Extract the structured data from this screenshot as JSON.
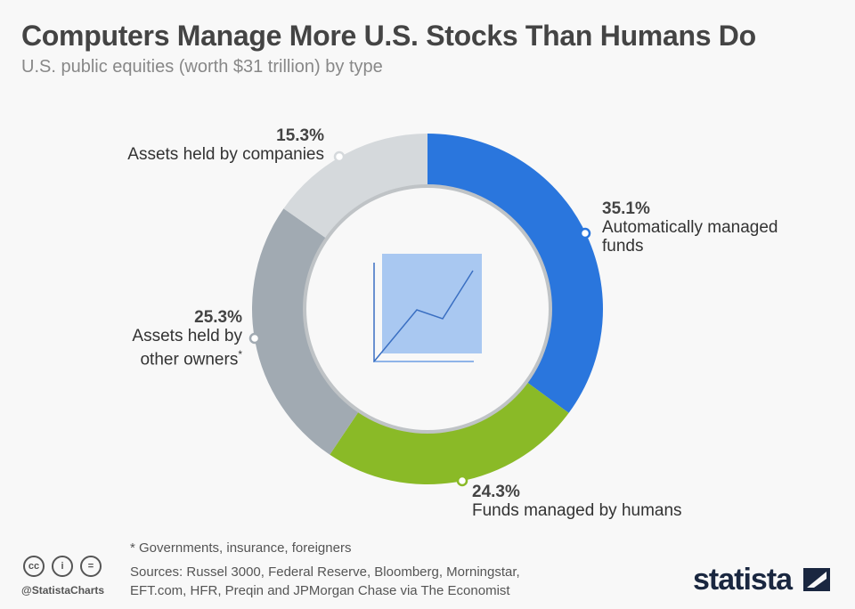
{
  "title": "Computers Manage More U.S. Stocks Than Humans Do",
  "subtitle": "U.S. public equities (worth $31 trillion) by type",
  "chart_data": {
    "type": "pie",
    "donut": true,
    "slices": [
      {
        "label": "Automatically managed funds",
        "value": 35.1,
        "value_label": "35.1%",
        "color": "#2a76dd"
      },
      {
        "label": "Funds managed by humans",
        "value": 24.3,
        "value_label": "24.3%",
        "color": "#8aba27"
      },
      {
        "label": "Assets held by other owners*",
        "value": 25.3,
        "value_label": "25.3%",
        "color": "#a1aab2"
      },
      {
        "label": "Assets held by companies",
        "value": 15.3,
        "value_label": "15.3%",
        "color": "#d5d9dc"
      }
    ]
  },
  "labels": {
    "auto_l1": "Automatically managed",
    "auto_l2": "funds",
    "human": "Funds managed by humans",
    "other_l1": "Assets held by",
    "other_l2": "other owners",
    "companies": "Assets held by companies",
    "asterisk": "*"
  },
  "footer": {
    "note": "* Governments, insurance, foreigners",
    "source_l1": "Sources: Russel 3000, Federal Reserve, Bloomberg, Morningstar,",
    "source_l2": "EFT.com, HFR, Preqin and JPMorgan Chase via The Economist",
    "handle": "@StatistaCharts",
    "cc": "cc",
    "by": "i",
    "nd": "=",
    "logo": "statista"
  }
}
